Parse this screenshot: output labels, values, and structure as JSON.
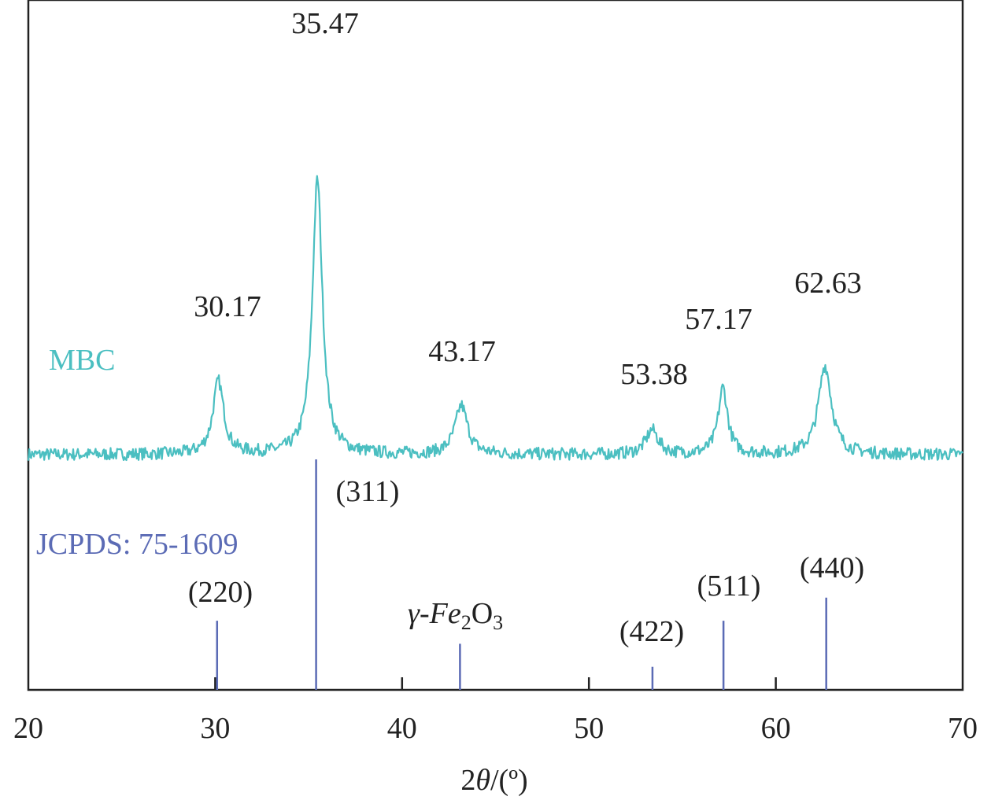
{
  "chart_data": {
    "type": "line",
    "xlabel_prefix": "2",
    "xlabel_theta": "θ",
    "xlabel_suffix": "/(º)",
    "ylabel": "",
    "xlim": [
      20,
      70
    ],
    "x_ticks": [
      "20",
      "30",
      "40",
      "50",
      "60",
      "70"
    ],
    "grid": false,
    "series": [
      {
        "name": "MBC",
        "color": "#4bbfc1",
        "peaks": [
          {
            "x": 30.17,
            "height": 0.165,
            "width": 0.35
          },
          {
            "x": 35.47,
            "height": 0.62,
            "width": 0.32
          },
          {
            "x": 43.17,
            "height": 0.11,
            "width": 0.4
          },
          {
            "x": 53.38,
            "height": 0.055,
            "width": 0.4
          },
          {
            "x": 57.17,
            "height": 0.15,
            "width": 0.3
          },
          {
            "x": 62.63,
            "height": 0.2,
            "width": 0.42
          }
        ]
      }
    ],
    "peak_labels": [
      {
        "x": 30.17,
        "text": "30.17"
      },
      {
        "x": 35.47,
        "text": "35.47"
      },
      {
        "x": 43.17,
        "text": "43.17"
      },
      {
        "x": 53.38,
        "text": "53.38"
      },
      {
        "x": 57.17,
        "text": "57.17"
      },
      {
        "x": 62.63,
        "text": "62.63"
      }
    ],
    "reference": {
      "name": "JCPDS: 75-1609",
      "color": "#5b6bb5",
      "phase_prefix": "γ-Fe",
      "phase_sub1": "2",
      "phase_mid": "O",
      "phase_sub2": "3",
      "lines": [
        {
          "x": 30.1,
          "intensity": 0.3,
          "hkl": "(220)"
        },
        {
          "x": 35.4,
          "intensity": 1.0,
          "hkl": "(311)"
        },
        {
          "x": 43.1,
          "intensity": 0.2,
          "hkl": ""
        },
        {
          "x": 53.4,
          "intensity": 0.1,
          "hkl": "(422)"
        },
        {
          "x": 57.2,
          "intensity": 0.3,
          "hkl": "(511)"
        },
        {
          "x": 62.7,
          "intensity": 0.4,
          "hkl": "(440)"
        }
      ]
    }
  }
}
